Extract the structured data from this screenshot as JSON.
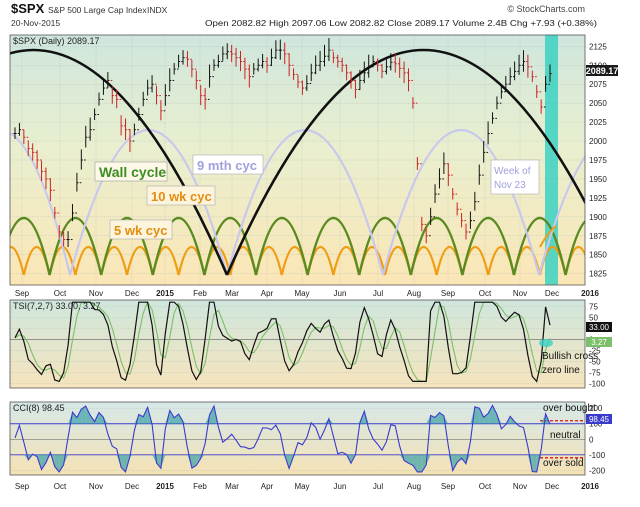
{
  "header": {
    "symbol": "$SPX",
    "name": "S&P 500 Large Cap Index",
    "exchange": "INDX",
    "date": "20-Nov-2015",
    "ohlc": "Open 2082.82  High 2097.06  Low 2082.82  Close 2089.17  Volume 2.4B  Chg +7.93 (+0.38%)",
    "watermark": "© StockCharts.com",
    "legend": "$SPX (Daily) 2089.17"
  },
  "chart_data": [
    {
      "type": "line",
      "panel": "price",
      "series": [
        {
          "name": "$SPX (Daily)",
          "last": 2089.17,
          "values": [
            2010,
            2015,
            2005,
            1990,
            1985,
            1975,
            1960,
            1950,
            1935,
            1905,
            1880,
            1870,
            1870,
            1905,
            1945,
            1975,
            2005,
            2015,
            2035,
            2055,
            2070,
            2080,
            2060,
            2055,
            2020,
            2015,
            2000,
            2015,
            2035,
            2055,
            2070,
            2075,
            2060,
            2040,
            2060,
            2080,
            2095,
            2105,
            2110,
            2108,
            2095,
            2080,
            2060,
            2055,
            2085,
            2100,
            2105,
            2115,
            2118,
            2115,
            2110,
            2105,
            2095,
            2085,
            2095,
            2100,
            2105,
            2100,
            2110,
            2120,
            2120,
            2115,
            2100,
            2088,
            2078,
            2070,
            2076,
            2090,
            2100,
            2105,
            2112,
            2120,
            2110,
            2105,
            2100,
            2090,
            2080,
            2068,
            2080,
            2090,
            2098,
            2105,
            2100,
            2092,
            2098,
            2104,
            2102,
            2096,
            2090,
            2080,
            2050,
            1970,
            1890,
            1875,
            1900,
            1930,
            1950,
            1970,
            1955,
            1930,
            1910,
            1895,
            1880,
            1895,
            1920,
            1955,
            1985,
            2010,
            2030,
            2050,
            2065,
            2075,
            2085,
            2092,
            2100,
            2105,
            2098,
            2085,
            2065,
            2045,
            2075,
            2089
          ]
        }
      ],
      "ylim": [
        1810,
        2140
      ],
      "y_ticks": [
        "2125",
        "2100",
        "2075",
        "2050",
        "2025",
        "2000",
        "1975",
        "1950",
        "1925",
        "1900",
        "1875",
        "1850",
        "1825"
      ],
      "x_ticks": [
        "Sep",
        "Oct",
        "Nov",
        "Dec",
        "2015",
        "Feb",
        "Mar",
        "Apr",
        "May",
        "Jun",
        "Jul",
        "Aug",
        "Sep",
        "Oct",
        "Nov",
        "Dec",
        "2016"
      ],
      "annotations": [
        "Wall cycle",
        "9 mth cyc",
        "10 wk cyc",
        "5 wk cyc",
        "Week of Nov 23"
      ],
      "last_value_label": "2089.17"
    },
    {
      "type": "line",
      "panel": "tsi",
      "legend": "TSI(7,2,7) 33.00, 3.27",
      "series": [
        {
          "name": "TSI",
          "last": 33.0
        },
        {
          "name": "Signal",
          "last": 3.27
        }
      ],
      "ylim": [
        -110,
        90
      ],
      "y_ticks": [
        "75",
        "50",
        "25",
        "0",
        "-25",
        "-50",
        "-75",
        "-100"
      ],
      "value_labels": [
        "33.00",
        "3.27"
      ],
      "annotation": "Bullish cross zero line"
    },
    {
      "type": "area",
      "panel": "cci",
      "legend": "CCI(8) 98.45",
      "series": [
        {
          "name": "CCI(8)",
          "last": 98.45
        }
      ],
      "ylim": [
        -230,
        240
      ],
      "y_ticks": [
        "200",
        "100",
        "0",
        "-100",
        "-200"
      ],
      "value_label": "98.45",
      "annotations": [
        "over bought",
        "neutral",
        "over sold"
      ]
    }
  ],
  "colors": {
    "wall": "#111111",
    "nine_month": "#c8c8ee",
    "ten_week": "#5a8a20",
    "five_week": "#ef9d12",
    "label_wall": "#3d8e23",
    "label_nine": "#9fa0dc",
    "label_ten": "#e38d12",
    "label_five": "#e38d12",
    "highlight": "#3cd1c2",
    "cci_line": "#3a3acd",
    "cci_fill": "#3aa0a6",
    "price_up": "#111111",
    "price_down": "#cc2222",
    "dashed": "#e01010"
  }
}
